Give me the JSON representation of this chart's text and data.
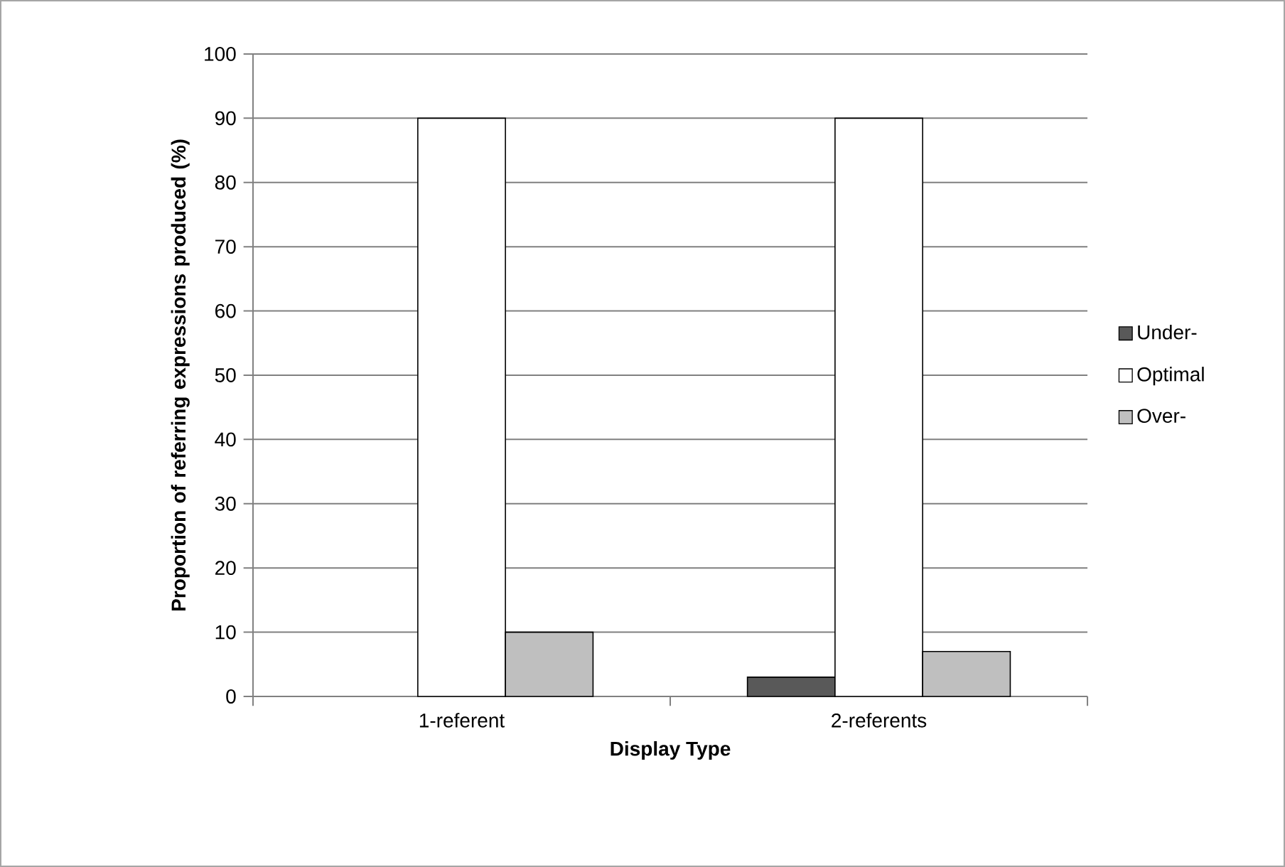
{
  "chart_data": {
    "type": "bar",
    "xlabel": "Display Type",
    "ylabel": "Proportion of referring expressions produced (%)",
    "categories": [
      "1-referent",
      "2-referents"
    ],
    "series": [
      {
        "name": "Under-",
        "color": "#595959",
        "values": [
          null,
          3
        ]
      },
      {
        "name": "Optimal",
        "color": "#ffffff",
        "values": [
          90,
          90
        ]
      },
      {
        "name": "Over-",
        "color": "#bfbfbf",
        "values": [
          10,
          7
        ]
      }
    ],
    "ylim": [
      0,
      100
    ],
    "yticks": [
      0,
      10,
      20,
      30,
      40,
      50,
      60,
      70,
      80,
      90,
      100
    ],
    "grid": "y",
    "legend": "right"
  }
}
